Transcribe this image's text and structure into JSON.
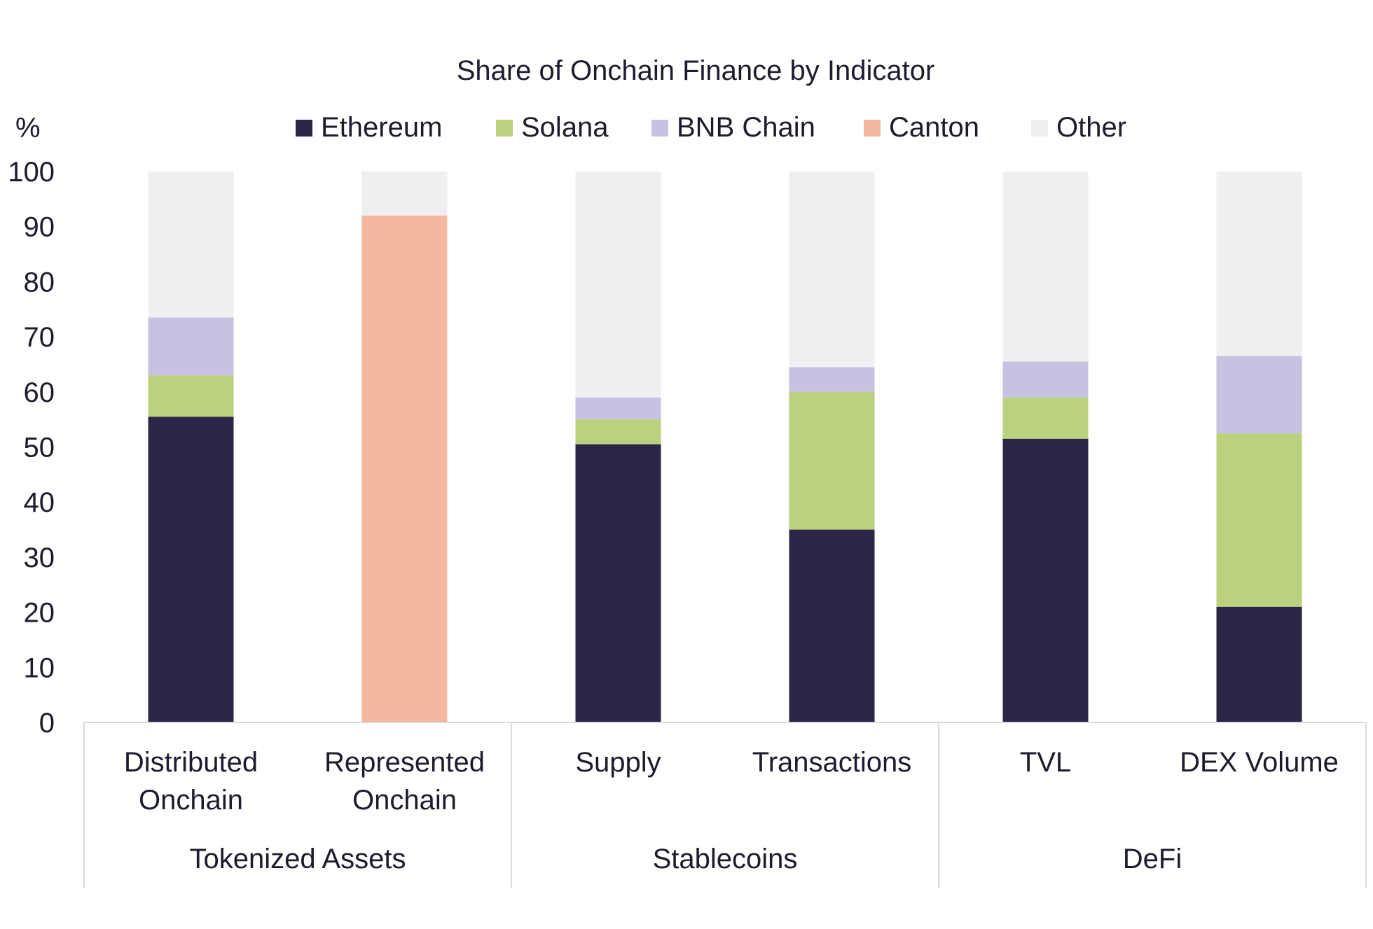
{
  "chart_data": {
    "type": "bar",
    "stacked": true,
    "title": "Share of Onchain Finance by Indicator",
    "ylabel": "%",
    "ylim": [
      0,
      100
    ],
    "yticks": [
      0,
      10,
      20,
      30,
      40,
      50,
      60,
      70,
      80,
      90,
      100
    ],
    "legend_position": "top",
    "groups": [
      {
        "label": "Tokenized Assets",
        "categories": [
          "Distributed Onchain",
          "Represented Onchain"
        ]
      },
      {
        "label": "Stablecoins",
        "categories": [
          "Supply",
          "Transactions"
        ]
      },
      {
        "label": "DeFi",
        "categories": [
          "TVL",
          "DEX Volume"
        ]
      }
    ],
    "categories": [
      "Distributed Onchain",
      "Represented Onchain",
      "Supply",
      "Transactions",
      "TVL",
      "DEX Volume"
    ],
    "series": [
      {
        "name": "Ethereum",
        "color": "#2c2546",
        "values": [
          55.5,
          0,
          50.5,
          35,
          51.5,
          21
        ]
      },
      {
        "name": "Solana",
        "color": "#bad17d",
        "values": [
          7.5,
          0,
          4.5,
          25,
          7.5,
          31.5
        ]
      },
      {
        "name": "BNB Chain",
        "color": "#c7c1e2",
        "values": [
          10.5,
          0,
          4,
          4.5,
          6.5,
          14
        ]
      },
      {
        "name": "Canton",
        "color": "#f2b8a0",
        "values": [
          0,
          92,
          0,
          0,
          0,
          0
        ]
      },
      {
        "name": "Other",
        "color": "#efeff1",
        "values": [
          26.5,
          8,
          41,
          35.5,
          34.5,
          33.5
        ]
      }
    ]
  }
}
